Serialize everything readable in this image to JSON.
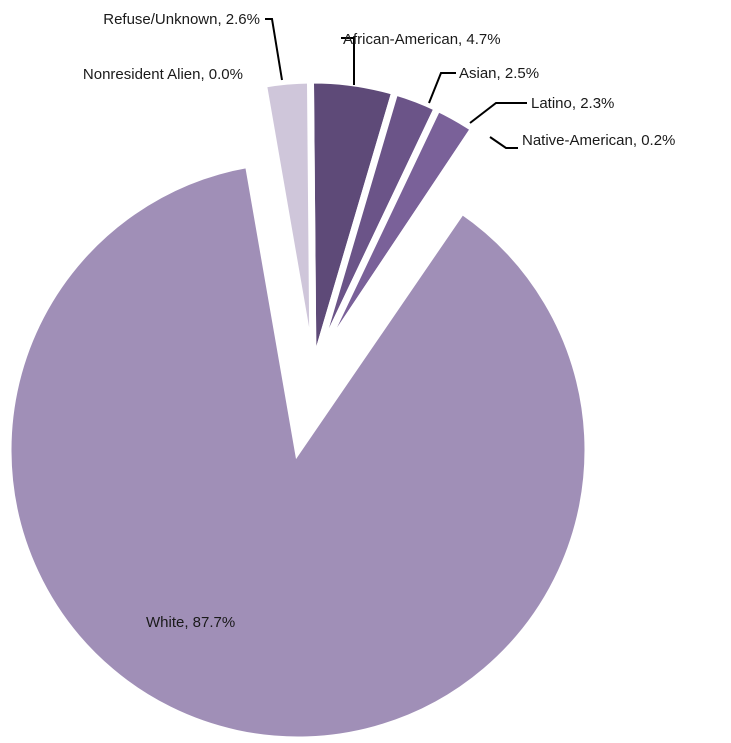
{
  "chart_data": {
    "type": "pie",
    "title": "",
    "slices": [
      {
        "label": "African-American",
        "value": 4.7,
        "display": "African-American, 4.7%",
        "color": "#5e4a78"
      },
      {
        "label": "Asian",
        "value": 2.5,
        "display": "Asian, 2.5%",
        "color": "#6b5488"
      },
      {
        "label": "Latino",
        "value": 2.3,
        "display": "Latino, 2.3%",
        "color": "#7a6199"
      },
      {
        "label": "Native-American",
        "value": 0.2,
        "display": "Native-American, 0.2%",
        "color": "#8a73a8"
      },
      {
        "label": "White",
        "value": 87.7,
        "display": "White, 87.7%",
        "color": "#a08fb7"
      },
      {
        "label": "Nonresident Alien",
        "value": 0.0,
        "display": "Nonresident Alien, 0.0%",
        "color": "#b9acc9"
      },
      {
        "label": "Refuse/Unknown",
        "value": 2.6,
        "display": "Refuse/Unknown, 2.6%",
        "color": "#cfc6da"
      }
    ],
    "exploded": true,
    "legend": "none",
    "data_labels": "outside with leader lines"
  }
}
